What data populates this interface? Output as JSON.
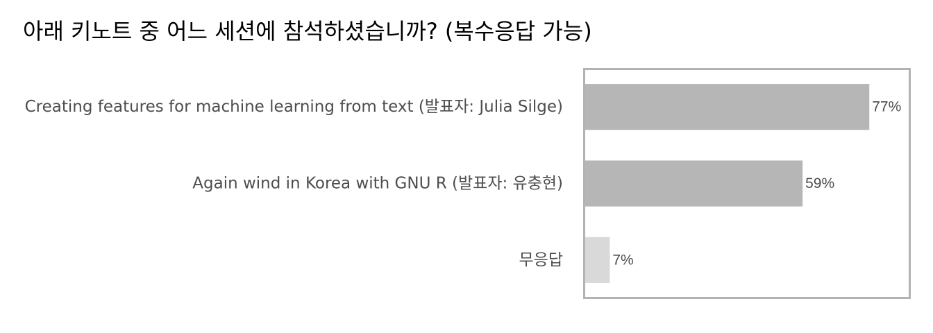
{
  "chart_data": {
    "type": "bar",
    "orientation": "horizontal",
    "title": "아래 키노트 중 어느 세션에 참석하셨습니까? (복수응답 가능)",
    "categories": [
      "Creating features for machine learning from text (발표자: Julia Silge)",
      "Again wind in Korea with GNU R (발표자: 유충현)",
      "무응답"
    ],
    "values": [
      77,
      59,
      7
    ],
    "value_labels": [
      "77%",
      "59%",
      "7%"
    ],
    "unit": "%",
    "xlim": [
      0,
      88
    ],
    "grid": false,
    "legend": "none",
    "colors": [
      "#b6b6b6",
      "#b6b6b6",
      "#d9d9d9"
    ],
    "frame_color": "#b3b3b3"
  }
}
